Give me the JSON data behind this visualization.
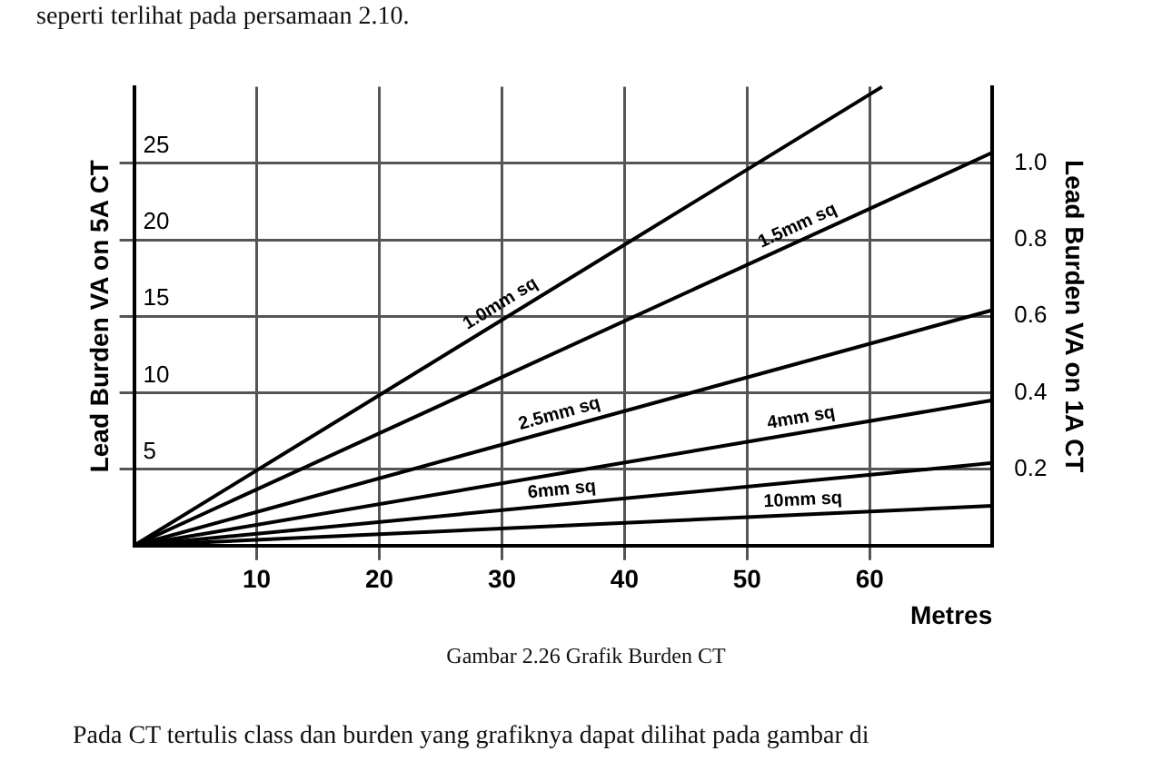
{
  "chart_data": {
    "type": "line",
    "xlabel": "Metres",
    "ylabel": "Lead Burden VA on 5A CT",
    "y2label": "Lead Burden VA on 1A CT",
    "annotations": [
      "seperti terlihat pada persamaan 2.10.",
      "Gambar 2.26 Grafik Burden CT",
      "Pada CT tertulis class dan burden yang grafiknya dapat dilihat pada gambar di"
    ],
    "xlim": [
      0,
      70
    ],
    "xticks": [
      10,
      20,
      30,
      40,
      50,
      60
    ],
    "ylim": [
      0,
      30
    ],
    "yticks": [
      5,
      10,
      15,
      20,
      25
    ],
    "y2lim": [
      0,
      1.2
    ],
    "y2ticks": [
      {
        "value": 0.2,
        "label": "0.2"
      },
      {
        "value": 0.4,
        "label": "0.4"
      },
      {
        "value": 0.6,
        "label": "0.6"
      },
      {
        "value": 0.8,
        "label": "0.8"
      },
      {
        "value": 1,
        "label": "1.0"
      }
    ],
    "grid": true,
    "legend": false,
    "marker": "none",
    "line_style": "solid",
    "series": [
      {
        "name": "1.0mm sq",
        "color": "#000000",
        "x": [
          0,
          61
        ],
        "values": [
          0,
          30
        ]
      },
      {
        "name": "1.5mm sq",
        "color": "#000000",
        "x": [
          0,
          70
        ],
        "values": [
          0,
          25.7
        ]
      },
      {
        "name": "2.5mm sq",
        "color": "#000000",
        "x": [
          0,
          70
        ],
        "values": [
          0,
          15.4
        ]
      },
      {
        "name": "4mm sq",
        "color": "#000000",
        "x": [
          0,
          70
        ],
        "values": [
          0,
          9.5
        ]
      },
      {
        "name": "6mm sq",
        "color": "#000000",
        "x": [
          0,
          70
        ],
        "values": [
          0,
          5.4
        ]
      },
      {
        "name": "10mm sq",
        "color": "#000000",
        "x": [
          0,
          70
        ],
        "values": [
          0,
          2.6
        ]
      }
    ]
  }
}
